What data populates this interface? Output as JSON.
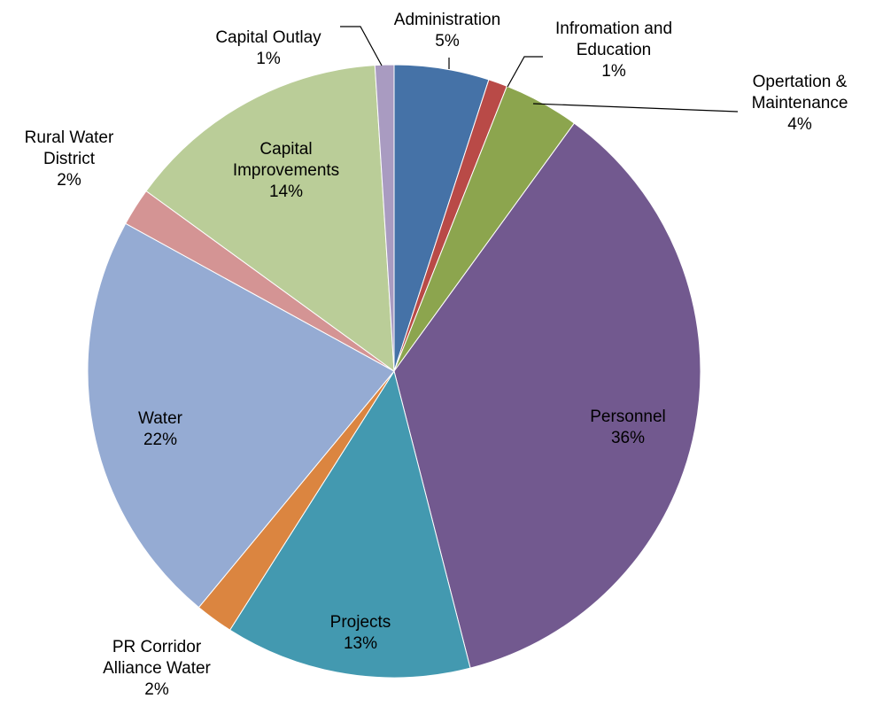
{
  "chart_data": {
    "type": "pie",
    "categories": [
      "Administration",
      "Infromation and Education",
      "Opertation & Maintenance",
      "Personnel",
      "Projects",
      "PR Corridor Alliance Water",
      "Water",
      "Rural Water District",
      "Capital Improvements",
      "Capital Outlay"
    ],
    "values": [
      5,
      1,
      4,
      36,
      13,
      2,
      22,
      2,
      14,
      1
    ],
    "value_labels": [
      "5%",
      "1%",
      "4%",
      "36%",
      "13%",
      "2%",
      "22%",
      "2%",
      "14%",
      "1%"
    ],
    "colors": [
      "#4572a7",
      "#b94a47",
      "#8ca54e",
      "#72598f",
      "#4399b0",
      "#db8540",
      "#95abd3",
      "#d49494",
      "#bacd98",
      "#a99bc1"
    ]
  }
}
